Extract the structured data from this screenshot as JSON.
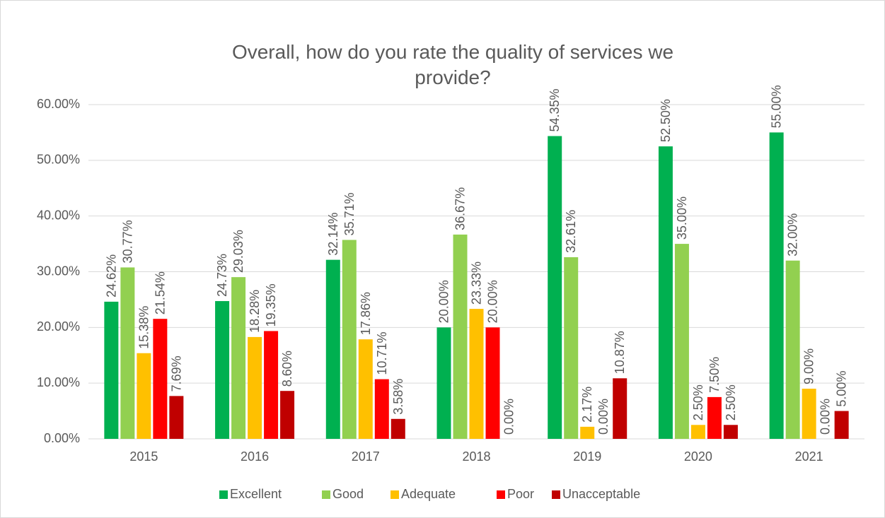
{
  "chart_data": {
    "type": "bar",
    "title": "Overall, how do you rate the quality of services we provide?",
    "categories": [
      "2015",
      "2016",
      "2017",
      "2018",
      "2019",
      "2020",
      "2021"
    ],
    "series": [
      {
        "name": "Excellent",
        "color": "#00b050",
        "values": [
          24.62,
          24.73,
          32.14,
          20.0,
          54.35,
          52.5,
          55.0
        ],
        "value_labels": [
          "24.62%",
          "24.73%",
          "32.14%",
          "20.00%",
          "54.35%",
          "52.50%",
          "55.00%"
        ]
      },
      {
        "name": "Good",
        "color": "#92d050",
        "values": [
          30.77,
          29.03,
          35.71,
          36.67,
          32.61,
          35.0,
          32.0
        ],
        "value_labels": [
          "30.77%",
          "29.03%",
          "35.71%",
          "36.67%",
          "32.61%",
          "35.00%",
          "32.00%"
        ]
      },
      {
        "name": "Adequate",
        "color": "#ffc000",
        "values": [
          15.38,
          18.28,
          17.86,
          23.33,
          2.17,
          2.5,
          9.0
        ],
        "value_labels": [
          "15.38%",
          "18.28%",
          "17.86%",
          "23.33%",
          "2.17%",
          "2.50%",
          "9.00%"
        ]
      },
      {
        "name": "Poor",
        "color": "#ff0000",
        "values": [
          21.54,
          19.35,
          10.71,
          20.0,
          0.0,
          7.5,
          0.0
        ],
        "value_labels": [
          "21.54%",
          "19.35%",
          "10.71%",
          "20.00%",
          "0.00%",
          "7.50%",
          "0.00%"
        ]
      },
      {
        "name": "Unacceptable",
        "color": "#c00000",
        "values": [
          7.69,
          8.6,
          3.58,
          0.0,
          10.87,
          2.5,
          5.0
        ],
        "value_labels": [
          "7.69%",
          "8.60%",
          "3.58%",
          "0.00%",
          "10.87%",
          "2.50%",
          "5.00%"
        ]
      }
    ],
    "ylim": [
      0,
      60
    ],
    "yticks": [
      {
        "value": 0,
        "label": "0.00%"
      },
      {
        "value": 10,
        "label": "10.00%"
      },
      {
        "value": 20,
        "label": "20.00%"
      },
      {
        "value": 30,
        "label": "30.00%"
      },
      {
        "value": 40,
        "label": "40.00%"
      },
      {
        "value": 50,
        "label": "50.00%"
      },
      {
        "value": 60,
        "label": "60.00%"
      }
    ],
    "grid": true,
    "legend": "bottom"
  }
}
